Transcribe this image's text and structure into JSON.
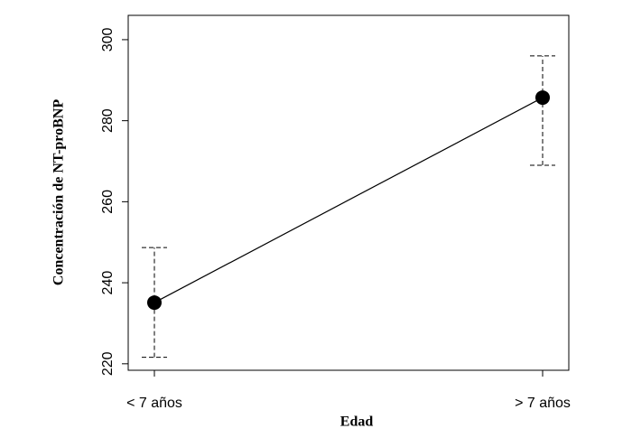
{
  "chart_data": {
    "type": "line",
    "x_label": "Edad",
    "y_label": "Concentración de NT-proBNP",
    "categories": [
      "< 7 años",
      "> 7 años"
    ],
    "values": [
      235.1,
      285.7
    ],
    "lower": [
      221.6,
      269.0
    ],
    "upper": [
      248.7,
      296.0
    ],
    "color": "#000000",
    "ylim": [
      218.4,
      306.0
    ],
    "yticks": [
      220,
      240,
      260,
      280,
      300
    ]
  }
}
